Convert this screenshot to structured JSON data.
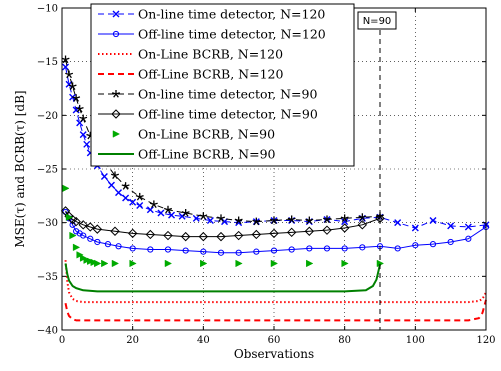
{
  "chart_data": {
    "type": "line",
    "title": "",
    "xlabel": "Observations",
    "ylabel": "MSE(τ) and BCRB(τ) [dB]",
    "xlim": [
      0,
      120
    ],
    "ylim": [
      -40,
      -10
    ],
    "xticks": [
      "0",
      "20",
      "40",
      "60",
      "80",
      "100",
      "120"
    ],
    "yticks": [
      "−10",
      "−15",
      "−20",
      "−25",
      "−30",
      "−35",
      "−40"
    ],
    "grid": true,
    "legend_position": "top",
    "annotation": {
      "text": "N=90",
      "x": 90,
      "style": "dashed vertical line"
    },
    "series": [
      {
        "name": "On-line time detector, N=120",
        "color": "#0000ff",
        "line": "dashed",
        "marker": "x",
        "x": [
          1,
          2,
          3,
          4,
          5,
          6,
          7,
          8,
          9,
          10,
          12,
          14,
          16,
          18,
          20,
          22,
          25,
          28,
          31,
          34,
          38,
          42,
          46,
          50,
          55,
          60,
          65,
          70,
          75,
          80,
          85,
          90,
          95,
          100,
          105,
          110,
          115,
          120
        ],
        "y": [
          -15.5,
          -17.1,
          -18.3,
          -19.5,
          -20.7,
          -21.8,
          -22.7,
          -23.5,
          -24.1,
          -24.7,
          -25.7,
          -26.5,
          -27.2,
          -27.7,
          -28.1,
          -28.4,
          -28.8,
          -29.1,
          -29.3,
          -29.4,
          -29.6,
          -29.8,
          -29.9,
          -30.0,
          -29.9,
          -29.8,
          -29.8,
          -29.9,
          -29.7,
          -29.9,
          -29.6,
          -29.5,
          -30.0,
          -30.5,
          -29.8,
          -30.3,
          -30.4,
          -30.2
        ]
      },
      {
        "name": "Off-line time detector, N=120",
        "color": "#0000ff",
        "line": "solid",
        "marker": "o",
        "x": [
          1,
          2,
          3,
          4,
          5,
          6,
          8,
          10,
          13,
          16,
          20,
          25,
          30,
          35,
          40,
          45,
          50,
          55,
          60,
          65,
          70,
          75,
          80,
          85,
          90,
          95,
          100,
          105,
          110,
          115,
          120
        ],
        "y": [
          -29.0,
          -29.6,
          -30.2,
          -30.8,
          -31.0,
          -31.2,
          -31.5,
          -31.8,
          -32.0,
          -32.2,
          -32.4,
          -32.5,
          -32.5,
          -32.6,
          -32.7,
          -32.8,
          -32.8,
          -32.7,
          -32.6,
          -32.5,
          -32.4,
          -32.4,
          -32.4,
          -32.3,
          -32.2,
          -32.4,
          -32.1,
          -32.0,
          -31.8,
          -31.5,
          -30.4
        ]
      },
      {
        "name": "On-Line BCRB, N=120",
        "color": "#ff0000",
        "line": "dotted",
        "marker": "none",
        "x": [
          1,
          1.5,
          2,
          3,
          4,
          6,
          10,
          20,
          40,
          60,
          80,
          100,
          115,
          118,
          119,
          120
        ],
        "y": [
          -33.5,
          -35.5,
          -36.5,
          -37.1,
          -37.3,
          -37.4,
          -37.4,
          -37.4,
          -37.4,
          -37.4,
          -37.4,
          -37.4,
          -37.4,
          -37.3,
          -37.1,
          -36.5
        ]
      },
      {
        "name": "Off-Line BCRB, N=120",
        "color": "#ff0000",
        "line": "dashed",
        "marker": "none",
        "x": [
          1,
          1.5,
          2,
          3,
          4,
          6,
          10,
          20,
          40,
          60,
          80,
          100,
          115,
          118,
          119,
          120
        ],
        "y": [
          -37.5,
          -38.3,
          -38.7,
          -39.0,
          -39.1,
          -39.1,
          -39.1,
          -39.1,
          -39.1,
          -39.1,
          -39.1,
          -39.1,
          -39.1,
          -38.9,
          -38.4,
          -37.2
        ]
      },
      {
        "name": "On-line time detector, N=90",
        "color": "#000000",
        "line": "dashed",
        "marker": "*",
        "x": [
          1,
          2,
          3,
          4,
          5,
          6,
          8,
          10,
          12,
          15,
          18,
          22,
          26,
          30,
          35,
          40,
          45,
          50,
          55,
          60,
          65,
          70,
          75,
          80,
          85,
          90
        ],
        "y": [
          -14.8,
          -16.2,
          -17.3,
          -18.4,
          -19.4,
          -20.3,
          -21.9,
          -23.2,
          -24.3,
          -25.6,
          -26.6,
          -27.6,
          -28.3,
          -28.8,
          -29.1,
          -29.4,
          -29.6,
          -29.8,
          -29.9,
          -29.8,
          -29.7,
          -29.8,
          -29.7,
          -29.6,
          -29.5,
          -29.4
        ]
      },
      {
        "name": "Off-line time detector, N=90",
        "color": "#000000",
        "line": "solid",
        "marker": "diamond",
        "x": [
          1,
          2,
          3,
          4,
          6,
          8,
          10,
          15,
          20,
          25,
          30,
          35,
          40,
          45,
          50,
          55,
          60,
          65,
          70,
          75,
          80,
          85,
          90
        ],
        "y": [
          -28.9,
          -29.4,
          -29.7,
          -29.9,
          -30.2,
          -30.4,
          -30.6,
          -30.8,
          -31.0,
          -31.1,
          -31.2,
          -31.3,
          -31.3,
          -31.3,
          -31.2,
          -31.1,
          -31.0,
          -30.9,
          -30.8,
          -30.7,
          -30.5,
          -30.2,
          -29.6
        ]
      },
      {
        "name": "On-Line BCRB, N=90",
        "color": "#00aa00",
        "line": "none",
        "marker": "triangle-right",
        "x": [
          1,
          2,
          3,
          4,
          5,
          6,
          7,
          8,
          9,
          10,
          12,
          15,
          20,
          30,
          40,
          50,
          60,
          70,
          80,
          90
        ],
        "y": [
          -26.8,
          -29.5,
          -31.2,
          -32.3,
          -33.0,
          -33.3,
          -33.5,
          -33.6,
          -33.7,
          -33.8,
          -33.8,
          -33.8,
          -33.8,
          -33.8,
          -33.8,
          -33.8,
          -33.8,
          -33.8,
          -33.8,
          -33.8
        ]
      },
      {
        "name": "Off-Line BCRB, N=90",
        "color": "#008000",
        "line": "solid",
        "marker": "none",
        "x": [
          1,
          1.5,
          2,
          3,
          4,
          6,
          10,
          20,
          40,
          60,
          80,
          86,
          88,
          89,
          90
        ],
        "y": [
          -33.8,
          -34.8,
          -35.4,
          -35.9,
          -36.1,
          -36.3,
          -36.4,
          -36.4,
          -36.4,
          -36.4,
          -36.4,
          -36.3,
          -35.9,
          -35.3,
          -33.9
        ]
      }
    ]
  }
}
